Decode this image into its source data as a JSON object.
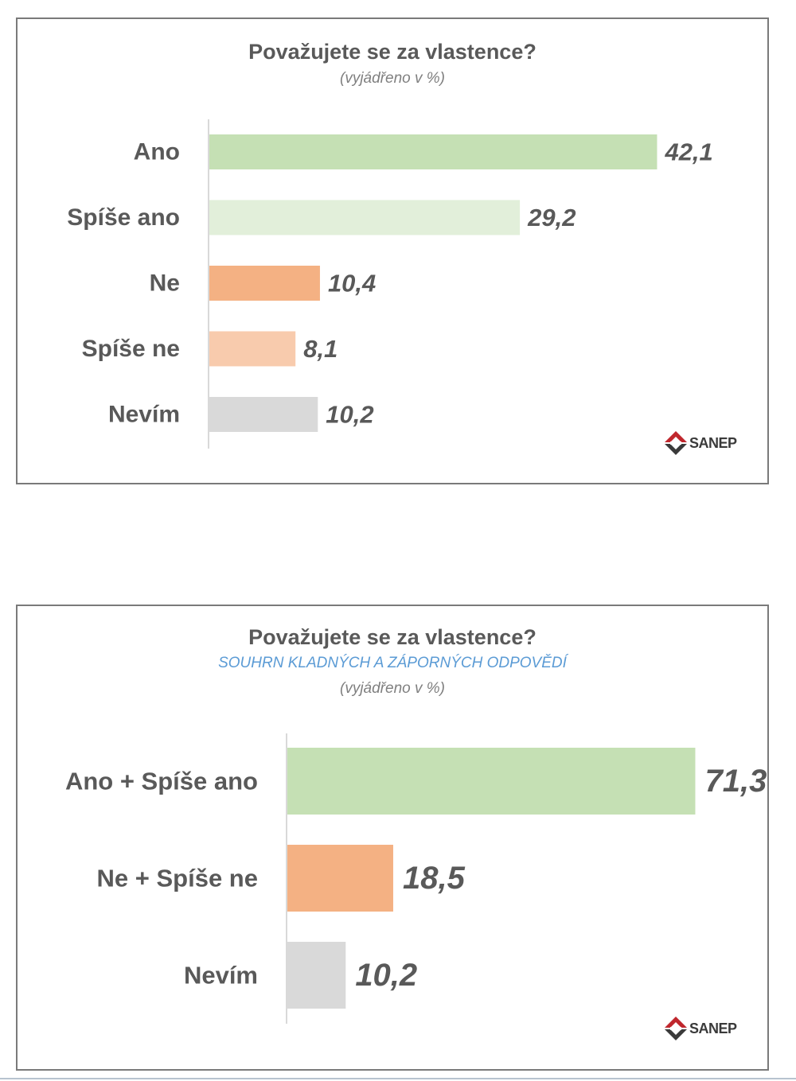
{
  "chart_data": [
    {
      "type": "bar",
      "orientation": "horizontal",
      "title": "Považujete se za vlastence?",
      "subtitle": "(vyjádřeno v %)",
      "categories": [
        "Ano",
        "Spíše ano",
        "Ne",
        "Spíše ne",
        "Nevím"
      ],
      "values": [
        42.1,
        29.2,
        10.4,
        8.1,
        10.2
      ],
      "value_labels": [
        "42,1",
        "29,2",
        "10,4",
        "8,1",
        "10,2"
      ],
      "colors": [
        "#c5e0b4",
        "#e2efda",
        "#f4b183",
        "#f8cbad",
        "#d9d9d9"
      ],
      "xlim": [
        0,
        50
      ],
      "grid": false,
      "legend": "none"
    },
    {
      "type": "bar",
      "orientation": "horizontal",
      "title": "Považujete se za vlastence?",
      "summary_label": "SOUHRN KLADNÝCH A ZÁPORNÝCH ODPOVĚDÍ",
      "subtitle": "(vyjádřeno v %)",
      "categories": [
        "Ano + Spíše ano",
        "Ne + Spíše ne",
        "Nevím"
      ],
      "values": [
        71.3,
        18.5,
        10.2
      ],
      "value_labels": [
        "71,3",
        "18,5",
        "10,2"
      ],
      "colors": [
        "#c5e0b4",
        "#f4b183",
        "#d9d9d9"
      ],
      "xlim": [
        0,
        80
      ],
      "grid": false,
      "legend": "none"
    }
  ],
  "logo": {
    "text": "SANEP",
    "colors": {
      "red": "#c0272d",
      "dark": "#3a3a3a"
    }
  }
}
